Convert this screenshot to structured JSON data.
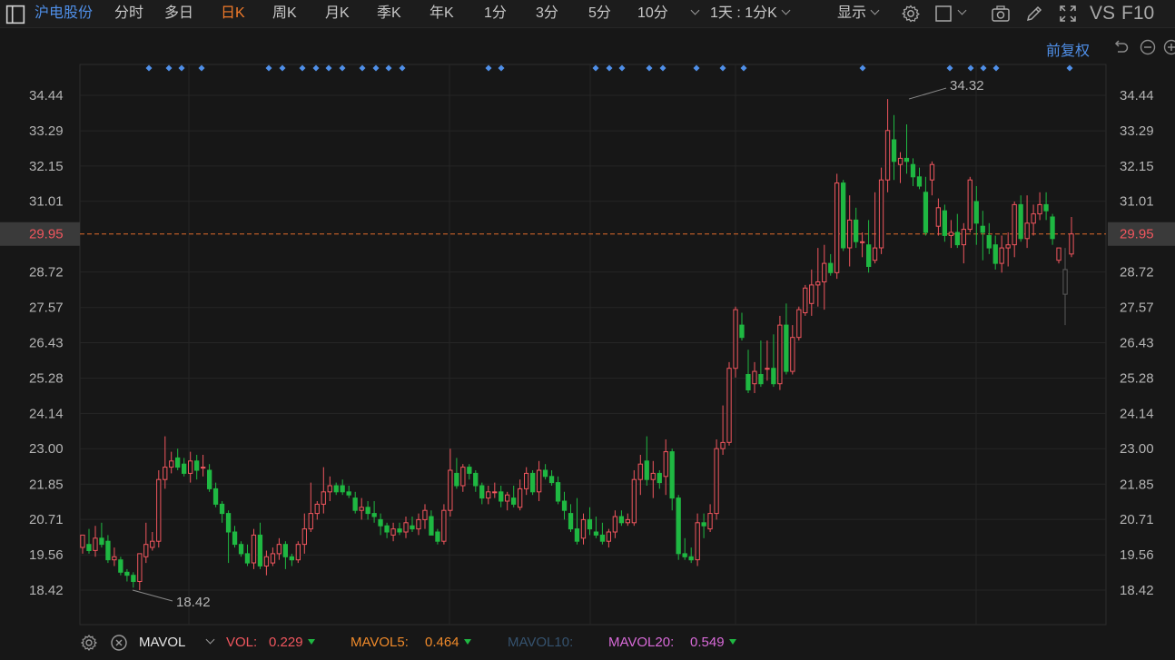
{
  "toolbar": {
    "stock_name": "沪电股份",
    "periods": [
      "分时",
      "多日",
      "日K",
      "周K",
      "月K",
      "季K",
      "年K",
      "1分",
      "3分",
      "5分",
      "10分"
    ],
    "active_period": "日K",
    "period_select": "1天 : 1分K",
    "display_label": "显示",
    "vs_label": "VS",
    "f10_label": "F10"
  },
  "adjust_label": "前复权",
  "price_axis": {
    "ticks": [
      "34.44",
      "33.29",
      "32.15",
      "31.01",
      "29.95",
      "28.72",
      "27.57",
      "26.43",
      "25.28",
      "24.14",
      "23.00",
      "21.85",
      "20.71",
      "19.56",
      "18.42"
    ],
    "current_price": "29.95",
    "high_label": "34.32",
    "low_label": "18.42"
  },
  "indicator_bar": {
    "name": "MAVOL",
    "vol_label": "VOL:",
    "vol_value": "0.229",
    "mavol5_label": "MAVOL5:",
    "mavol5_value": "0.464",
    "mavol10_label": "MAVOL10:",
    "mavol20_label": "MAVOL20:",
    "mavol20_value": "0.549"
  },
  "colors": {
    "up": "#f0565e",
    "down": "#1fb842",
    "accent": "#4f8fe8",
    "active_tab": "#f07a2a",
    "current_price_line": "#e06a2a"
  }
}
